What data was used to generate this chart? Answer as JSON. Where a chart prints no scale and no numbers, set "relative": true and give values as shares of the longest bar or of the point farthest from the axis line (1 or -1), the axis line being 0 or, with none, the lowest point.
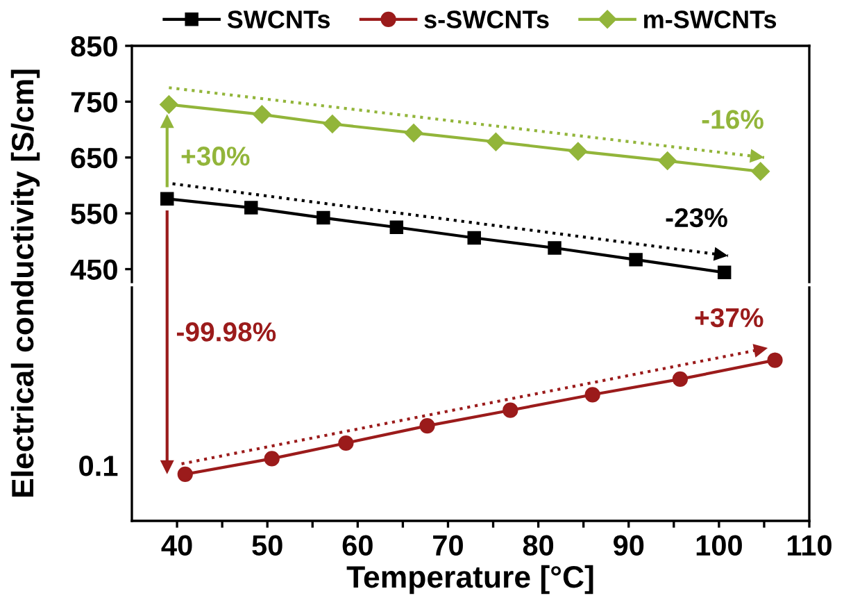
{
  "chart_data": [
    {
      "type": "line",
      "ylabel": "Electrical conductivity [S/cm]",
      "xlim": [
        35,
        110
      ],
      "ylim": [
        427,
        850
      ],
      "yticks": [
        450,
        550,
        650,
        750,
        850
      ],
      "tick_labels": "y",
      "legend": "top",
      "grid": false,
      "series": [
        {
          "name": "SWCNTs",
          "color": "#000000",
          "marker": "square",
          "x": [
            38.9,
            48.2,
            56.2,
            64.3,
            72.9,
            81.8,
            90.8,
            100.6
          ],
          "values": [
            576,
            560,
            542,
            525,
            506,
            488,
            467,
            444
          ]
        },
        {
          "name": "m-SWCNTs",
          "color": "#92b53a",
          "marker": "diamond",
          "x": [
            39.1,
            49.4,
            57.2,
            66.2,
            75.3,
            84.4,
            94.3,
            104.6
          ],
          "values": [
            745,
            727,
            710,
            694,
            678,
            661,
            644,
            625
          ]
        },
        {
          "type": "line",
          "color": "#92b53a",
          "line_style": "dotted",
          "marker": "none",
          "x": [
            39.1,
            105
          ],
          "values": [
            775,
            650
          ]
        },
        {
          "type": "line",
          "color": "#000000",
          "line_style": "dotted",
          "marker": "none",
          "x": [
            39.5,
            101
          ],
          "values": [
            603,
            474
          ]
        }
      ],
      "annotations": [
        {
          "text": "+30%",
          "x": 39.1,
          "y": 745
        },
        {
          "text": "-16%",
          "x": 105,
          "y": 650
        },
        {
          "text": "-23%",
          "x": 101,
          "y": 474
        }
      ]
    },
    {
      "type": "line",
      "xlabel": "Temperature [°C]",
      "xlim": [
        35,
        110
      ],
      "xticks": [
        40,
        50,
        60,
        70,
        80,
        90,
        100,
        110
      ],
      "relative": true,
      "grid": false,
      "series": [
        {
          "name": "s-SWCNTs",
          "color": "#9b1b1b",
          "marker": "circle",
          "x": [
            40.9,
            50.5,
            58.7,
            67.7,
            76.9,
            86.0,
            95.7,
            106.2
          ],
          "values": [
            0.27,
            0.36,
            0.45,
            0.55,
            0.64,
            0.73,
            0.82,
            0.93
          ]
        },
        {
          "type": "line",
          "color": "#9b1b1b",
          "line_style": "dotted",
          "marker": "none",
          "x": [
            40.5,
            105.4
          ],
          "values": [
            0.33,
            1
          ]
        }
      ],
      "annotations": [
        "0.1",
        "-99.98%",
        {
          "text": "+37%",
          "x": 105.4,
          "y": 1
        }
      ]
    }
  ]
}
